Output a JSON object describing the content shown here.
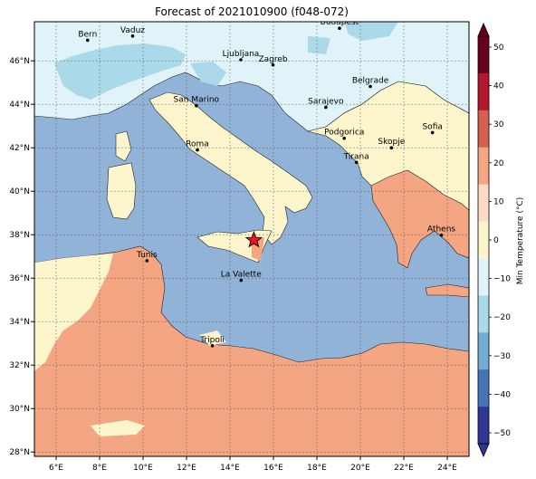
{
  "title": "Forecast of 2021010900 (f048-072)",
  "colorbar": {
    "label": "Min Temperature (°C)",
    "ticks": [
      "50",
      "40",
      "30",
      "20",
      "10",
      "0",
      "−10",
      "−20",
      "−30",
      "−40",
      "−50"
    ],
    "colors": [
      "#67001f",
      "#b2182b",
      "#d6604d",
      "#f4a582",
      "#fddbc7",
      "#fdf5cc",
      "#e0f3f8",
      "#abd9e9",
      "#74add1",
      "#4575b4",
      "#313695"
    ]
  },
  "map": {
    "lon_ticks": [
      "6°E",
      "8°E",
      "10°E",
      "12°E",
      "14°E",
      "16°E",
      "18°E",
      "20°E",
      "22°E",
      "24°E"
    ],
    "lat_ticks": [
      "46°N",
      "44°N",
      "42°N",
      "40°N",
      "38°N",
      "36°N",
      "34°N",
      "32°N",
      "30°N",
      "28°N"
    ],
    "extent": {
      "lon": [
        5,
        25
      ],
      "lat": [
        27.8,
        47.8
      ]
    },
    "cities": [
      {
        "name": "Bern",
        "lon": 7.45,
        "lat": 46.95
      },
      {
        "name": "Vaduz",
        "lon": 9.52,
        "lat": 47.14
      },
      {
        "name": "Budapest",
        "lon": 19.04,
        "lat": 47.5
      },
      {
        "name": "Ljubljana",
        "lon": 14.5,
        "lat": 46.05
      },
      {
        "name": "Zagreb",
        "lon": 15.98,
        "lat": 45.81
      },
      {
        "name": "Belgrade",
        "lon": 20.46,
        "lat": 44.82
      },
      {
        "name": "San Marino",
        "lon": 12.45,
        "lat": 43.94
      },
      {
        "name": "Sarajevo",
        "lon": 18.41,
        "lat": 43.86
      },
      {
        "name": "Sofia",
        "lon": 23.32,
        "lat": 42.7
      },
      {
        "name": "Podgorica",
        "lon": 19.26,
        "lat": 42.44
      },
      {
        "name": "Skopje",
        "lon": 21.43,
        "lat": 42.0
      },
      {
        "name": "Roma",
        "lon": 12.5,
        "lat": 41.9
      },
      {
        "name": "Tirana",
        "lon": 19.82,
        "lat": 41.33
      },
      {
        "name": "Athens",
        "lon": 23.73,
        "lat": 37.98
      },
      {
        "name": "Tunis",
        "lon": 10.18,
        "lat": 36.8
      },
      {
        "name": "La Valette",
        "lon": 14.51,
        "lat": 35.9
      },
      {
        "name": "Tripoli",
        "lon": 13.19,
        "lat": 32.89
      }
    ],
    "marker": {
      "type": "star",
      "lon": 15.1,
      "lat": 37.75,
      "color": "#e41a1c"
    }
  }
}
